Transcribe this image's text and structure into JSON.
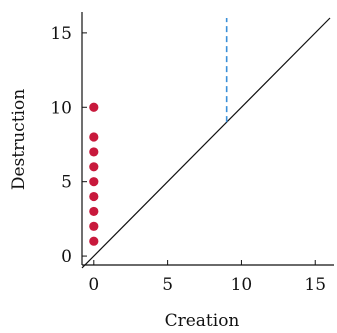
{
  "chart_data": {
    "type": "scatter",
    "xlabel": "Creation",
    "ylabel": "Destruction",
    "xlim": [
      -0.8,
      16
    ],
    "ylim": [
      -0.6,
      16
    ],
    "x_ticks": [
      0,
      5,
      10,
      15
    ],
    "y_ticks": [
      0,
      5,
      10,
      15
    ],
    "grid": false,
    "colors": {
      "points": "#c8193c",
      "diagonal": "#111111",
      "dashed_line": "#3a8fd8",
      "axes": "#111111"
    },
    "series": [
      {
        "kind": "points",
        "x": [
          0,
          0,
          0,
          0,
          0,
          0,
          0,
          0,
          0
        ],
        "y": [
          1,
          2,
          3,
          4,
          5,
          6,
          7,
          8,
          10
        ]
      },
      {
        "kind": "diagonal",
        "x": [
          -0.8,
          16
        ],
        "y": [
          -0.8,
          16
        ]
      },
      {
        "kind": "dashed-vertical",
        "x": [
          9,
          9
        ],
        "y": [
          9,
          16
        ]
      }
    ]
  }
}
